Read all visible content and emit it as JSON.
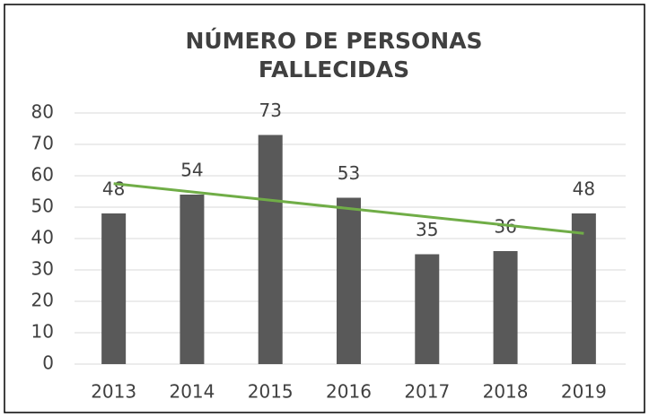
{
  "chart_data": {
    "type": "bar",
    "title": [
      "NÚMERO DE PERSONAS",
      "FALLECIDAS"
    ],
    "categories": [
      "2013",
      "2014",
      "2015",
      "2016",
      "2017",
      "2018",
      "2019"
    ],
    "values": [
      48,
      54,
      73,
      53,
      35,
      36,
      48
    ],
    "color": "#595959",
    "ylim": [
      0,
      80
    ],
    "yticks": [
      0,
      10,
      20,
      30,
      40,
      50,
      60,
      70,
      80
    ],
    "grid": true,
    "trendline_color": "#70ad47"
  }
}
